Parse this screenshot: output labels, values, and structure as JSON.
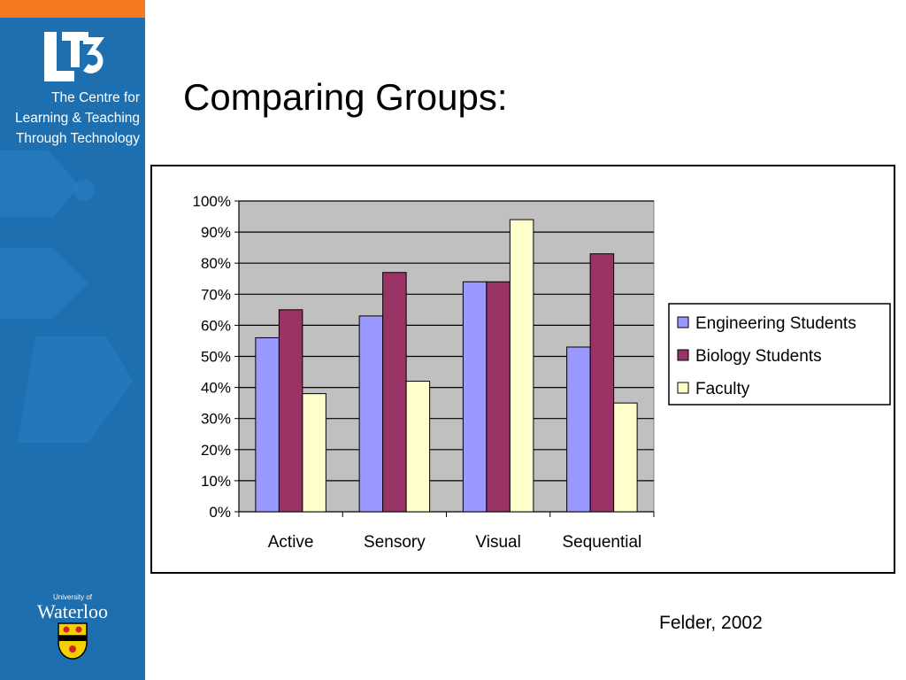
{
  "branding": {
    "centre_name_lines": [
      "The Centre for",
      "Learning & Teaching",
      "Through Technology"
    ],
    "logo_text": "LT3",
    "university_small": "University of",
    "university_name": "Waterloo"
  },
  "slide": {
    "title": "Comparing Groups:",
    "citation": "Felder, 2002"
  },
  "colors": {
    "sidebar": "#1d6fb0",
    "accent_bar": "#f47a20",
    "plot_background": "#c0c0c0"
  },
  "chart_data": {
    "type": "bar",
    "categories": [
      "Active",
      "Sensory",
      "Visual",
      "Sequential"
    ],
    "series": [
      {
        "name": "Engineering Students",
        "values": [
          56,
          63,
          74,
          53
        ],
        "color": "#9999ff"
      },
      {
        "name": "Biology Students",
        "values": [
          65,
          77,
          74,
          83
        ],
        "color": "#993366"
      },
      {
        "name": "Faculty",
        "values": [
          38,
          42,
          94,
          35
        ],
        "color": "#ffffcc"
      }
    ],
    "ylim": [
      0,
      100
    ],
    "yticks": [
      "0%",
      "10%",
      "20%",
      "30%",
      "40%",
      "50%",
      "60%",
      "70%",
      "80%",
      "90%",
      "100%"
    ],
    "grid": true,
    "legend_position": "right"
  }
}
